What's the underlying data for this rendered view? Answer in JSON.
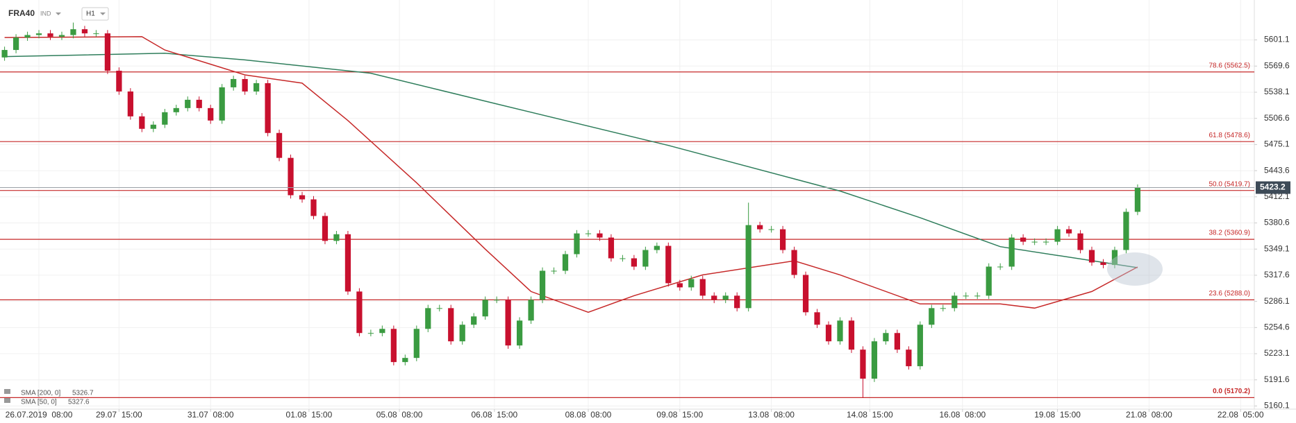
{
  "chart_data": {
    "type": "candlestick",
    "title": "FRA40",
    "instrument_type": "IND",
    "timeframe": "H1",
    "open": [
      5580,
      5589,
      5604,
      5607,
      5609,
      5605,
      5607,
      5614,
      5609,
      5609,
      5564,
      5539,
      5509,
      5494,
      5499,
      5514,
      5519,
      5529,
      5519,
      5504,
      5544,
      5554,
      5539,
      5549,
      5489,
      5459,
      5414,
      5409,
      5389,
      5359,
      5367,
      5298,
      5248,
      5248,
      5253,
      5213,
      5218,
      5253,
      5278,
      5278,
      5238,
      5258,
      5268,
      5288,
      5288,
      5233,
      5263,
      5288,
      5323,
      5323,
      5343,
      5368,
      5368,
      5363,
      5338,
      5338,
      5328,
      5348,
      5353,
      5308,
      5303,
      5313,
      5293,
      5288,
      5293,
      5278,
      5378,
      5373,
      5373,
      5348,
      5318,
      5273,
      5258,
      5238,
      5263,
      5228,
      5193,
      5238,
      5248,
      5228,
      5208,
      5258,
      5278,
      5278,
      5293,
      5293,
      5293,
      5328,
      5328,
      5363,
      5358,
      5358,
      5358,
      5373,
      5368,
      5348,
      5333,
      5330,
      5348,
      5394
    ],
    "high": [
      5593,
      5608,
      5611,
      5613,
      5613,
      5611,
      5622,
      5618,
      5613,
      5613,
      5568,
      5543,
      5513,
      5503,
      5518,
      5523,
      5533,
      5533,
      5523,
      5548,
      5558,
      5558,
      5553,
      5553,
      5493,
      5463,
      5418,
      5413,
      5393,
      5371,
      5371,
      5302,
      5252,
      5257,
      5257,
      5222,
      5257,
      5282,
      5282,
      5282,
      5262,
      5272,
      5292,
      5292,
      5292,
      5267,
      5292,
      5327,
      5327,
      5347,
      5372,
      5372,
      5372,
      5367,
      5342,
      5342,
      5352,
      5357,
      5357,
      5312,
      5317,
      5317,
      5297,
      5297,
      5297,
      5405,
      5382,
      5377,
      5377,
      5352,
      5322,
      5277,
      5262,
      5267,
      5267,
      5232,
      5242,
      5252,
      5252,
      5232,
      5262,
      5282,
      5282,
      5297,
      5297,
      5297,
      5332,
      5332,
      5367,
      5367,
      5362,
      5362,
      5377,
      5377,
      5372,
      5352,
      5337,
      5352,
      5398,
      5427
    ],
    "low": [
      5576,
      5585,
      5600,
      5603,
      5601,
      5601,
      5603,
      5605,
      5605,
      5560,
      5535,
      5505,
      5490,
      5490,
      5495,
      5510,
      5515,
      5515,
      5500,
      5500,
      5540,
      5535,
      5535,
      5485,
      5455,
      5410,
      5405,
      5385,
      5355,
      5355,
      5294,
      5244,
      5244,
      5244,
      5209,
      5209,
      5214,
      5249,
      5274,
      5234,
      5234,
      5254,
      5264,
      5284,
      5229,
      5229,
      5259,
      5284,
      5319,
      5319,
      5339,
      5364,
      5359,
      5334,
      5334,
      5324,
      5324,
      5344,
      5304,
      5299,
      5299,
      5289,
      5284,
      5284,
      5274,
      5274,
      5369,
      5369,
      5344,
      5314,
      5269,
      5254,
      5234,
      5234,
      5224,
      5170,
      5189,
      5234,
      5224,
      5204,
      5204,
      5254,
      5274,
      5274,
      5289,
      5289,
      5289,
      5324,
      5324,
      5354,
      5354,
      5354,
      5354,
      5364,
      5344,
      5329,
      5326,
      5326,
      5344,
      5390
    ],
    "close": [
      5589,
      5604,
      5607,
      5609,
      5605,
      5607,
      5614,
      5609,
      5609,
      5564,
      5539,
      5509,
      5494,
      5499,
      5514,
      5519,
      5529,
      5519,
      5504,
      5544,
      5554,
      5539,
      5549,
      5489,
      5459,
      5414,
      5409,
      5389,
      5359,
      5367,
      5298,
      5248,
      5248,
      5253,
      5213,
      5218,
      5253,
      5278,
      5278,
      5238,
      5258,
      5268,
      5288,
      5288,
      5233,
      5263,
      5288,
      5323,
      5323,
      5343,
      5368,
      5368,
      5363,
      5338,
      5338,
      5328,
      5348,
      5353,
      5308,
      5303,
      5313,
      5293,
      5288,
      5293,
      5278,
      5378,
      5373,
      5373,
      5348,
      5318,
      5273,
      5258,
      5238,
      5263,
      5228,
      5193,
      5238,
      5248,
      5228,
      5208,
      5258,
      5278,
      5278,
      5293,
      5293,
      5293,
      5328,
      5328,
      5363,
      5358,
      5358,
      5358,
      5373,
      5368,
      5348,
      5333,
      5330,
      5348,
      5394,
      5423.2
    ],
    "up_color": "#3a9b41",
    "down_color": "#c8102e",
    "series": [
      {
        "name": "SMA [200, 0]",
        "color": "#2e7d5b",
        "x": [
          0,
          14,
          21,
          32,
          43,
          58,
          73,
          80,
          87,
          99
        ],
        "values": [
          5581,
          5585,
          5577,
          5561,
          5524,
          5474,
          5419,
          5387,
          5352,
          5326.7
        ]
      },
      {
        "name": "SMA [50, 0]",
        "color": "#c62828",
        "x": [
          0,
          12,
          14,
          21,
          26,
          30,
          36,
          42,
          46,
          51,
          55,
          61,
          69,
          73,
          80,
          87,
          90,
          95,
          99
        ],
        "values": [
          5604,
          5605,
          5589,
          5559,
          5549,
          5504,
          5429,
          5349,
          5298,
          5273,
          5293,
          5318,
          5335,
          5318,
          5283,
          5283,
          5278,
          5298,
          5327.6
        ]
      }
    ],
    "fib_color": "#c62828",
    "fib_levels": [
      {
        "label": "78.6 (5562.5)",
        "value": 5562.5
      },
      {
        "label": "61.8 (5478.6)",
        "value": 5478.6
      },
      {
        "label": "50.0 (5419.7)",
        "value": 5419.7
      },
      {
        "label": "38.2 (5360.9)",
        "value": 5360.9
      },
      {
        "label": "23.6 (5288.0)",
        "value": 5288.0
      },
      {
        "label": "0.0 (5170.2)",
        "value": 5170.2
      }
    ],
    "last_price": 5423.2,
    "ylim": [
      5156.3,
      5649.2
    ],
    "yticks": [
      5160.1,
      5191.6,
      5223.1,
      5254.6,
      5286.1,
      5317.6,
      5349.1,
      5380.6,
      5412.1,
      5443.6,
      5475.1,
      5506.6,
      5538.1,
      5569.6,
      5601.1
    ],
    "xlim": [
      -0.4,
      109.2
    ],
    "xticks": [
      {
        "value": 3,
        "label": "26.07.2019  08:00"
      },
      {
        "value": 10,
        "label": "29.07  15:00"
      },
      {
        "value": 18,
        "label": "31.07  08:00"
      },
      {
        "value": 26.6,
        "label": "01.08  15:00"
      },
      {
        "value": 34.5,
        "label": "05.08  08:00"
      },
      {
        "value": 42.8,
        "label": "06.08  15:00"
      },
      {
        "value": 51,
        "label": "08.08  08:00"
      },
      {
        "value": 59,
        "label": "09.08  15:00"
      },
      {
        "value": 67,
        "label": "13.08  08:00"
      },
      {
        "value": 75.6,
        "label": "14.08  15:00"
      },
      {
        "value": 83.7,
        "label": "16.08  08:00"
      },
      {
        "value": 92,
        "label": "19.08  15:00"
      },
      {
        "value": 100,
        "label": "21.08  08:00"
      },
      {
        "value": 108,
        "label": "22.08  05:00"
      }
    ],
    "grid": true
  }
}
